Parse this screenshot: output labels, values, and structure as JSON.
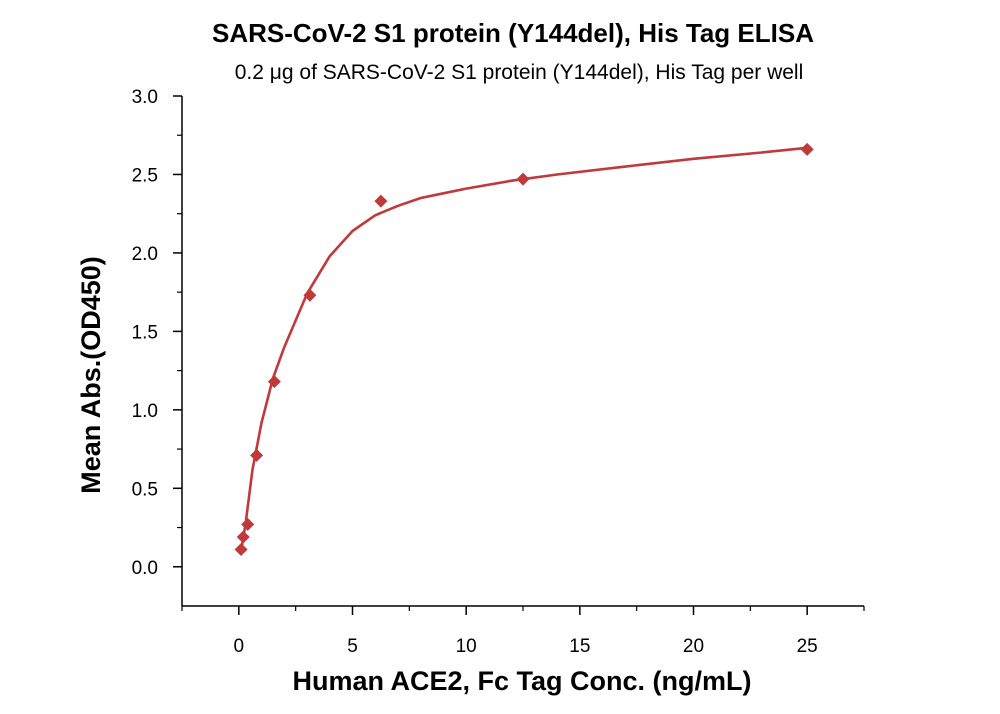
{
  "chart_data": {
    "type": "scatter",
    "title": "SARS-CoV-2 S1 protein (Y144del), His Tag ELISA",
    "subtitle": "0.2 μg of SARS-CoV-2 S1 protein (Y144del), His Tag per well",
    "xlabel": "Human ACE2, Fc Tag Conc. (ng/mL)",
    "ylabel": "Mean Abs.(OD450)",
    "xlim": [
      -2.5,
      27.5
    ],
    "ylim": [
      -0.25,
      3.0
    ],
    "xticks": [
      0,
      5,
      10,
      15,
      20,
      25
    ],
    "yticks": [
      0.0,
      0.5,
      1.0,
      1.5,
      2.0,
      2.5,
      3.0
    ],
    "xtick_labels": [
      "0",
      "5",
      "10",
      "15",
      "20",
      "25"
    ],
    "ytick_labels": [
      "0.0",
      "0.5",
      "1.0",
      "1.5",
      "2.0",
      "2.5",
      "3.0"
    ],
    "series": [
      {
        "marker": "diamond",
        "color": "#C0393B",
        "x": [
          0.098,
          0.195,
          0.391,
          0.781,
          1.563,
          3.125,
          6.25,
          12.5,
          25
        ],
        "y": [
          0.11,
          0.19,
          0.27,
          0.71,
          1.18,
          1.73,
          2.33,
          2.47,
          2.66
        ]
      }
    ],
    "fit_curve": {
      "color": "#C0393B",
      "x": [
        0.098,
        0.3,
        0.6,
        1.0,
        1.5,
        2.0,
        3.0,
        4.0,
        5.0,
        6.0,
        7.0,
        8.0,
        9.0,
        10.0,
        12.0,
        14.0,
        17.0,
        20.0,
        23.0,
        25.0
      ],
      "y": [
        0.1,
        0.28,
        0.62,
        0.92,
        1.2,
        1.4,
        1.74,
        1.98,
        2.14,
        2.24,
        2.3,
        2.35,
        2.38,
        2.41,
        2.46,
        2.5,
        2.55,
        2.6,
        2.64,
        2.67
      ]
    },
    "grid": false
  }
}
